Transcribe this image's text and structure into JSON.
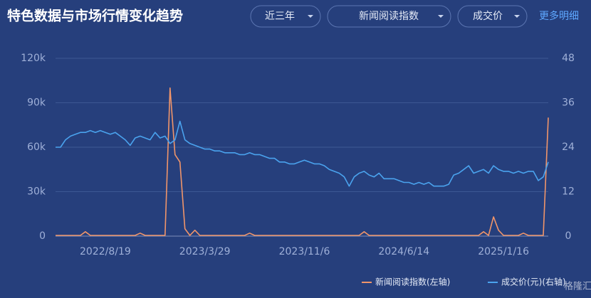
{
  "controls": {
    "filters": [
      "近三年",
      "新闻阅读指数",
      "成交价"
    ],
    "link": "更多明细",
    "watermark": "格隆汇"
  },
  "chart_data": {
    "type": "line",
    "title": "特色数据与市场行情变化趋势",
    "categories": [
      null,
      null,
      null,
      null,
      null,
      null,
      null,
      null,
      null,
      null,
      "2022/8/19",
      null,
      null,
      null,
      null,
      null,
      null,
      null,
      null,
      null,
      null,
      null,
      null,
      null,
      null,
      null,
      null,
      null,
      null,
      null,
      "2023/3/29",
      null,
      null,
      null,
      null,
      null,
      null,
      null,
      null,
      null,
      null,
      null,
      null,
      null,
      null,
      null,
      null,
      null,
      null,
      null,
      "2023/11/6",
      null,
      null,
      null,
      null,
      null,
      null,
      null,
      null,
      null,
      null,
      null,
      null,
      null,
      null,
      null,
      null,
      null,
      null,
      null,
      "2024/6/14",
      null,
      null,
      null,
      null,
      null,
      null,
      null,
      null,
      null,
      null,
      null,
      null,
      null,
      null,
      null,
      null,
      null,
      null,
      null,
      "2025/1/16",
      null,
      null,
      null,
      null,
      null,
      null,
      null,
      null,
      null
    ],
    "series": [
      {
        "name": "新闻阅读指数(左轴)",
        "color": "#f0956a",
        "axis": "y",
        "values": [
          500,
          500,
          500,
          500,
          500,
          500,
          3000,
          500,
          500,
          500,
          500,
          500,
          500,
          500,
          500,
          500,
          500,
          2000,
          500,
          500,
          500,
          500,
          500,
          100000,
          55000,
          50000,
          5000,
          500,
          4000,
          500,
          500,
          500,
          500,
          500,
          500,
          500,
          500,
          500,
          500,
          2000,
          500,
          500,
          500,
          500,
          500,
          500,
          500,
          500,
          500,
          500,
          500,
          500,
          500,
          500,
          500,
          500,
          500,
          500,
          500,
          500,
          500,
          500,
          3000,
          500,
          500,
          500,
          500,
          500,
          500,
          500,
          500,
          500,
          500,
          500,
          500,
          500,
          500,
          500,
          500,
          500,
          500,
          500,
          500,
          500,
          500,
          500,
          3000,
          500,
          13000,
          4000,
          500,
          500,
          500,
          500,
          2000,
          500,
          500,
          500,
          500,
          80000
        ]
      },
      {
        "name": "成交价(元)(右轴)",
        "color": "#4aa3ee",
        "axis": "y2",
        "values": [
          24,
          24,
          26,
          27,
          27.5,
          28,
          28,
          28.5,
          28,
          28.5,
          28,
          27.5,
          28,
          27,
          26,
          24.5,
          26.5,
          27,
          26.5,
          26,
          28,
          26.5,
          27,
          25,
          26,
          31,
          26,
          25,
          24.5,
          24,
          23.5,
          23.5,
          23,
          23,
          22.5,
          22.5,
          22.5,
          22,
          22,
          22.5,
          22,
          22,
          21.5,
          21,
          21,
          20,
          20,
          19.5,
          19.5,
          20,
          20.5,
          20,
          19.5,
          19.5,
          19,
          18,
          17.5,
          17,
          16,
          13.5,
          16,
          17,
          17.5,
          16.5,
          16,
          17,
          15.5,
          15.5,
          15.5,
          15,
          14.5,
          14.5,
          14,
          14.5,
          14,
          14.5,
          13.5,
          13.5,
          13.5,
          14,
          16.5,
          17,
          18,
          19,
          17,
          17.5,
          18,
          17,
          19,
          18,
          17.5,
          17.5,
          17,
          17.5,
          17,
          17.5,
          17.5,
          15,
          16,
          20
        ]
      }
    ],
    "ylim": [
      0,
      120000
    ],
    "yticks": [
      0,
      {
        "value": 30000,
        "label": "30k"
      },
      {
        "value": 60000,
        "label": "60k"
      },
      {
        "value": 90000,
        "label": "90k"
      },
      {
        "value": 120000,
        "label": "120k"
      }
    ],
    "y2lim": [
      0,
      48
    ],
    "y2ticks": [
      0,
      12,
      24,
      36,
      48
    ],
    "grid": true
  }
}
